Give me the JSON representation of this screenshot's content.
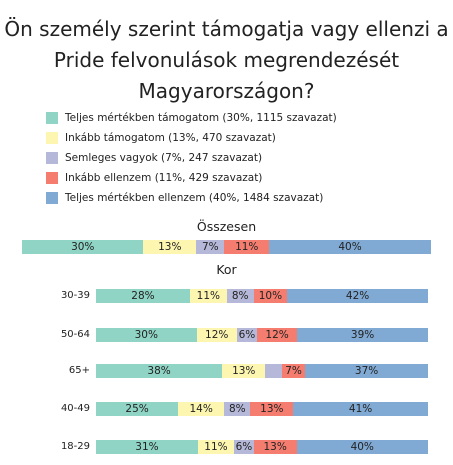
{
  "chart_data": [
    {
      "type": "bar",
      "stacked": true,
      "orientation": "horizontal",
      "title": "Ön személy szerint támogatja vagy ellenzi a Pride felvonulások megrendezését Magyarországon?",
      "subtitle": "Összesen",
      "categories": [
        null
      ],
      "series": [
        {
          "name": "Teljes mértékben támogatom (30%, 1115 szavazat)",
          "color": "#8fd4c5",
          "values": [
            30
          ],
          "value_labels": [
            "30%"
          ]
        },
        {
          "name": "Inkább támogatom (13%, 470 szavazat)",
          "color": "#fdf6b1",
          "values": [
            13
          ],
          "value_labels": [
            "13%"
          ]
        },
        {
          "name": "Semleges vagyok (7%, 247 szavazat)",
          "color": "#b5b8d8",
          "values": [
            7
          ],
          "value_labels": [
            "7%"
          ]
        },
        {
          "name": "Inkább ellenzem (11%, 429 szavazat)",
          "color": "#f57d6f",
          "values": [
            11
          ],
          "value_labels": [
            "11%"
          ]
        },
        {
          "name": "Teljes mértékben ellenzem (40%, 1484 szavazat)",
          "color": "#80aad3",
          "values": [
            40
          ],
          "value_labels": [
            "40%"
          ]
        }
      ]
    },
    {
      "type": "bar",
      "stacked": true,
      "orientation": "horizontal",
      "subtitle": "Kor",
      "categories": [
        "30-39",
        "50-64",
        "65+",
        "40-49",
        "18-29"
      ],
      "series": [
        {
          "color": "#8fd4c5",
          "values": [
            28,
            30,
            38,
            25,
            31
          ],
          "value_labels": [
            "28%",
            "30%",
            "38%",
            "25%",
            "31%"
          ]
        },
        {
          "color": "#fdf6b1",
          "values": [
            11,
            12,
            13,
            14,
            11
          ],
          "value_labels": [
            "11%",
            "12%",
            "13%",
            "14%",
            "11%"
          ]
        },
        {
          "color": "#b5b8d8",
          "values": [
            8,
            6,
            5,
            8,
            6
          ],
          "value_labels": [
            "8%",
            "6%",
            null,
            "8%",
            "6%"
          ]
        },
        {
          "color": "#f57d6f",
          "values": [
            10,
            12,
            7,
            13,
            13
          ],
          "value_labels": [
            "10%",
            "12%",
            "7%",
            "13%",
            "13%"
          ]
        },
        {
          "color": "#80aad3",
          "values": [
            42,
            39,
            37,
            41,
            40
          ],
          "value_labels": [
            "42%",
            "39%",
            "37%",
            "41%",
            "40%"
          ]
        }
      ]
    }
  ]
}
